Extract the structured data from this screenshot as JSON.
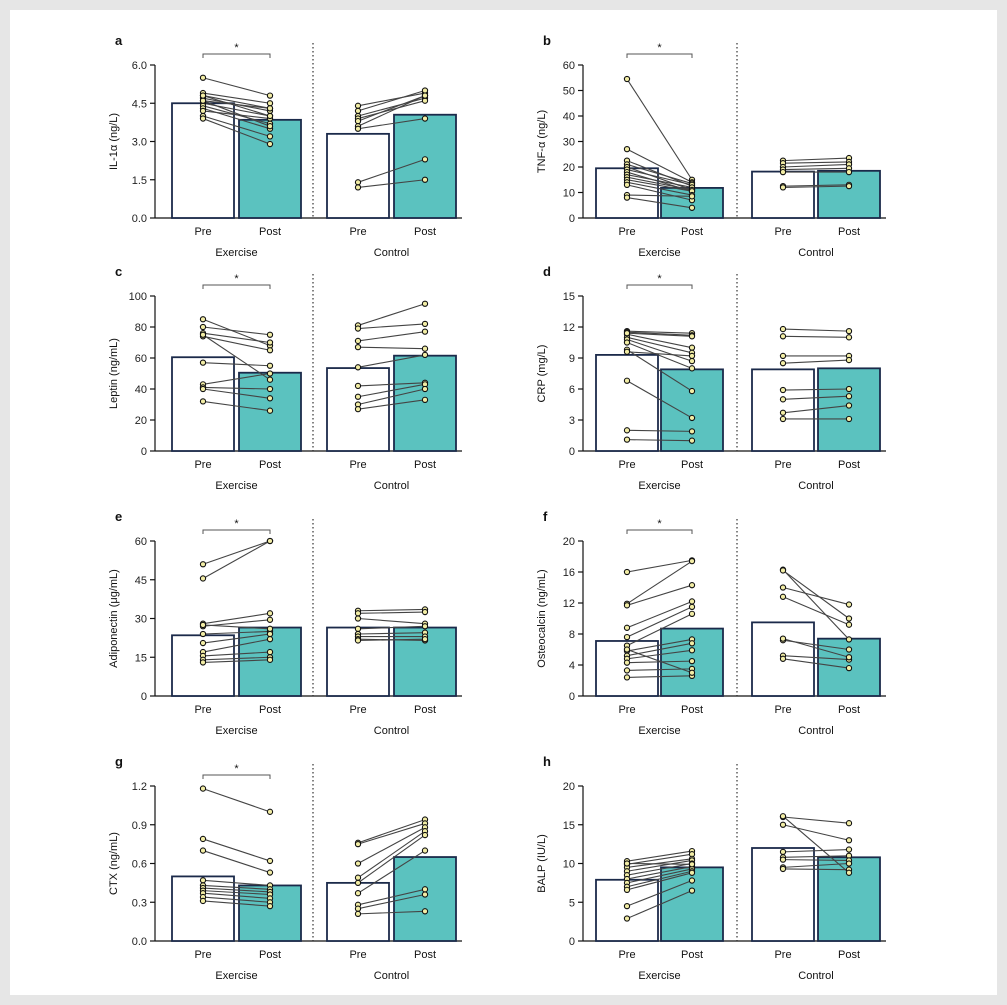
{
  "colors": {
    "post_fill": "#5bc2bf",
    "bar_stroke": "#1b2a4a",
    "line": "#444444",
    "point_fill": "#f2eda5"
  },
  "chart_data": [
    {
      "type": "bar",
      "panel": "a",
      "ylabel": "IL-1α (ng/L)",
      "yticks": [
        "0.0",
        "1.5",
        "3.0",
        "4.5",
        "6.0"
      ],
      "ylim": [
        0,
        6.0
      ],
      "groups": [
        "Exercise",
        "Control"
      ],
      "categories": [
        "Pre",
        "Post"
      ],
      "significance": "*",
      "means": {
        "exercise": [
          4.5,
          3.85
        ],
        "control": [
          3.3,
          4.05
        ]
      },
      "paired": {
        "exercise": [
          [
            5.5,
            4.8
          ],
          [
            4.9,
            4.5
          ],
          [
            4.8,
            4.3
          ],
          [
            4.7,
            4.2
          ],
          [
            4.6,
            4.3
          ],
          [
            4.5,
            4.0
          ],
          [
            4.4,
            3.7
          ],
          [
            4.3,
            3.5
          ],
          [
            4.2,
            3.9
          ],
          [
            4.0,
            3.2
          ],
          [
            3.9,
            2.9
          ],
          [
            4.6,
            3.6
          ],
          [
            4.8,
            4.0
          ]
        ],
        "control": [
          [
            4.4,
            4.9
          ],
          [
            4.2,
            5.0
          ],
          [
            4.0,
            4.7
          ],
          [
            3.9,
            4.6
          ],
          [
            3.8,
            4.8
          ],
          [
            3.6,
            4.8
          ],
          [
            3.5,
            3.9
          ],
          [
            1.4,
            2.3
          ],
          [
            1.2,
            1.5
          ]
        ]
      }
    },
    {
      "type": "bar",
      "panel": "b",
      "ylabel": "TNF-α (ng/L)",
      "yticks": [
        "0",
        "10",
        "20",
        "30",
        "40",
        "50",
        "60"
      ],
      "ylim": [
        0,
        60
      ],
      "groups": [
        "Exercise",
        "Control"
      ],
      "categories": [
        "Pre",
        "Post"
      ],
      "significance": "*",
      "means": {
        "exercise": [
          19.5,
          11.8
        ],
        "control": [
          18.2,
          18.5
        ]
      },
      "paired": {
        "exercise": [
          [
            54.5,
            15.0
          ],
          [
            27.0,
            14.0
          ],
          [
            22.5,
            12.5
          ],
          [
            21.0,
            13.5
          ],
          [
            20.0,
            11.0
          ],
          [
            19.0,
            13.0
          ],
          [
            18.0,
            10.5
          ],
          [
            17.0,
            12.0
          ],
          [
            16.0,
            11.0
          ],
          [
            15.0,
            10.5
          ],
          [
            14.0,
            9.0
          ],
          [
            13.0,
            7.0
          ],
          [
            9.0,
            8.5
          ],
          [
            8.0,
            4.0
          ]
        ],
        "control": [
          [
            22.5,
            23.5
          ],
          [
            21.5,
            22.0
          ],
          [
            20.0,
            21.0
          ],
          [
            19.0,
            19.5
          ],
          [
            18.0,
            18.0
          ],
          [
            12.5,
            13.0
          ],
          [
            12.0,
            12.5
          ]
        ]
      }
    },
    {
      "type": "bar",
      "panel": "c",
      "ylabel": "Leptin (ng/mL)",
      "yticks": [
        "0",
        "20",
        "40",
        "60",
        "80",
        "100"
      ],
      "ylim": [
        0,
        100
      ],
      "groups": [
        "Exercise",
        "Control"
      ],
      "categories": [
        "Pre",
        "Post"
      ],
      "significance": "*",
      "means": {
        "exercise": [
          60.5,
          50.5
        ],
        "control": [
          53.5,
          61.5
        ]
      },
      "paired": {
        "exercise": [
          [
            85,
            68
          ],
          [
            80,
            75
          ],
          [
            76,
            70
          ],
          [
            74,
            65
          ],
          [
            57,
            55
          ],
          [
            43,
            50
          ],
          [
            41,
            40
          ],
          [
            40,
            34
          ],
          [
            32,
            26
          ],
          [
            75,
            46
          ]
        ],
        "control": [
          [
            81,
            95
          ],
          [
            79,
            82
          ],
          [
            71,
            77
          ],
          [
            67,
            66
          ],
          [
            54,
            62
          ],
          [
            42,
            44
          ],
          [
            35,
            43
          ],
          [
            30,
            40
          ],
          [
            27,
            33
          ]
        ]
      }
    },
    {
      "type": "bar",
      "panel": "d",
      "ylabel": "CRP (mg/L)",
      "yticks": [
        "0",
        "3",
        "6",
        "9",
        "12",
        "15"
      ],
      "ylim": [
        0,
        15
      ],
      "groups": [
        "Exercise",
        "Control"
      ],
      "categories": [
        "Pre",
        "Post"
      ],
      "significance": "*",
      "means": {
        "exercise": [
          9.3,
          7.9
        ],
        "control": [
          7.9,
          8.0
        ]
      },
      "paired": {
        "exercise": [
          [
            11.6,
            11.4
          ],
          [
            11.5,
            11.2
          ],
          [
            11.3,
            10.0
          ],
          [
            11.0,
            9.5
          ],
          [
            10.8,
            8.7
          ],
          [
            10.5,
            8.0
          ],
          [
            9.8,
            5.8
          ],
          [
            9.6,
            9.2
          ],
          [
            6.8,
            3.2
          ],
          [
            2.0,
            1.9
          ],
          [
            1.1,
            1.0
          ],
          [
            11.4,
            11.1
          ]
        ],
        "control": [
          [
            11.8,
            11.6
          ],
          [
            11.1,
            11.0
          ],
          [
            9.2,
            9.2
          ],
          [
            8.5,
            8.8
          ],
          [
            5.9,
            6.0
          ],
          [
            5.0,
            5.3
          ],
          [
            3.7,
            4.4
          ],
          [
            3.1,
            3.1
          ]
        ]
      }
    },
    {
      "type": "bar",
      "panel": "e",
      "ylabel": "Adiponectin (μg/mL)",
      "yticks": [
        "0",
        "15",
        "30",
        "45",
        "60"
      ],
      "ylim": [
        0,
        60
      ],
      "groups": [
        "Exercise",
        "Control"
      ],
      "categories": [
        "Pre",
        "Post"
      ],
      "significance": "*",
      "means": {
        "exercise": [
          23.5,
          26.5
        ],
        "control": [
          26.5,
          26.5
        ]
      },
      "paired": {
        "exercise": [
          [
            51,
            60
          ],
          [
            45.5,
            60
          ],
          [
            28,
            32
          ],
          [
            27,
            29.5
          ],
          [
            24,
            25
          ],
          [
            20.5,
            24
          ],
          [
            17,
            22
          ],
          [
            15.5,
            17
          ],
          [
            14,
            15
          ],
          [
            13,
            14
          ],
          [
            27.5,
            26
          ]
        ],
        "control": [
          [
            33,
            33.5
          ],
          [
            32,
            32.5
          ],
          [
            30,
            28
          ],
          [
            26,
            27
          ],
          [
            24,
            24.5
          ],
          [
            23,
            23
          ],
          [
            22,
            21.5
          ],
          [
            21.5,
            22
          ]
        ]
      }
    },
    {
      "type": "bar",
      "panel": "f",
      "ylabel": "Osteocalcin (ng/mL)",
      "yticks": [
        "0",
        "4",
        "8",
        "12",
        "16",
        "20"
      ],
      "ylim": [
        0,
        20
      ],
      "groups": [
        "Exercise",
        "Control"
      ],
      "categories": [
        "Pre",
        "Post"
      ],
      "significance": "*",
      "means": {
        "exercise": [
          7.1,
          8.7
        ],
        "control": [
          9.5,
          7.4
        ]
      },
      "paired": {
        "exercise": [
          [
            16.0,
            17.5
          ],
          [
            11.9,
            17.4
          ],
          [
            11.7,
            14.3
          ],
          [
            8.8,
            12.2
          ],
          [
            7.6,
            11.5
          ],
          [
            6.5,
            10.6
          ],
          [
            5.8,
            7.3
          ],
          [
            5.2,
            6.8
          ],
          [
            4.8,
            5.9
          ],
          [
            4.3,
            4.5
          ],
          [
            3.3,
            3.5
          ],
          [
            2.4,
            2.6
          ],
          [
            6.0,
            3.0
          ]
        ],
        "control": [
          [
            16.3,
            7.3
          ],
          [
            16.2,
            10.0
          ],
          [
            14.0,
            11.8
          ],
          [
            12.8,
            9.2
          ],
          [
            7.2,
            6.0
          ],
          [
            5.2,
            4.7
          ],
          [
            4.8,
            3.6
          ],
          [
            7.4,
            5.0
          ]
        ]
      }
    },
    {
      "type": "bar",
      "panel": "g",
      "ylabel": "CTX (ng/mL)",
      "yticks": [
        "0.0",
        "0.3",
        "0.6",
        "0.9",
        "1.2"
      ],
      "ylim": [
        0,
        1.2
      ],
      "groups": [
        "Exercise",
        "Control"
      ],
      "categories": [
        "Pre",
        "Post"
      ],
      "significance": "*",
      "means": {
        "exercise": [
          0.5,
          0.43
        ],
        "control": [
          0.45,
          0.65
        ]
      },
      "paired": {
        "exercise": [
          [
            1.18,
            1.0
          ],
          [
            0.79,
            0.62
          ],
          [
            0.7,
            0.53
          ],
          [
            0.47,
            0.43
          ],
          [
            0.43,
            0.4
          ],
          [
            0.41,
            0.38
          ],
          [
            0.39,
            0.36
          ],
          [
            0.37,
            0.33
          ],
          [
            0.34,
            0.3
          ],
          [
            0.31,
            0.27
          ]
        ],
        "control": [
          [
            0.76,
            0.94
          ],
          [
            0.75,
            0.91
          ],
          [
            0.6,
            0.88
          ],
          [
            0.49,
            0.85
          ],
          [
            0.45,
            0.82
          ],
          [
            0.37,
            0.7
          ],
          [
            0.28,
            0.4
          ],
          [
            0.25,
            0.36
          ],
          [
            0.21,
            0.23
          ]
        ]
      }
    },
    {
      "type": "bar",
      "panel": "h",
      "ylabel": "BALP (IU/L)",
      "yticks": [
        "0",
        "5",
        "10",
        "15",
        "20"
      ],
      "ylim": [
        0,
        20
      ],
      "groups": [
        "Exercise",
        "Control"
      ],
      "categories": [
        "Pre",
        "Post"
      ],
      "significance": "",
      "means": {
        "exercise": [
          7.9,
          9.5
        ],
        "control": [
          12.0,
          10.8
        ]
      },
      "paired": {
        "exercise": [
          [
            10.3,
            11.6
          ],
          [
            9.9,
            11.2
          ],
          [
            9.5,
            10.6
          ],
          [
            9.0,
            10.4
          ],
          [
            8.5,
            10.0
          ],
          [
            8.0,
            9.6
          ],
          [
            7.5,
            9.3
          ],
          [
            7.0,
            9.0
          ],
          [
            6.6,
            8.8
          ],
          [
            4.5,
            7.8
          ],
          [
            2.9,
            6.5
          ],
          [
            10.0,
            9.9
          ]
        ],
        "control": [
          [
            16.0,
            15.2
          ],
          [
            15.0,
            13.0
          ],
          [
            11.5,
            11.8
          ],
          [
            10.8,
            11.0
          ],
          [
            10.5,
            10.4
          ],
          [
            9.5,
            10.0
          ],
          [
            9.3,
            9.2
          ],
          [
            16.1,
            8.8
          ]
        ]
      }
    }
  ]
}
